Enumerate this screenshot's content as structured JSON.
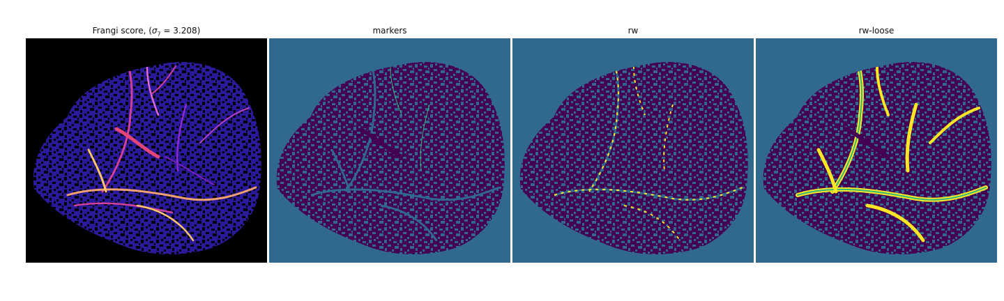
{
  "figure": {
    "panels": [
      {
        "id": "frangi",
        "title_prefix": "Frangi score, (",
        "title_sigma": "σ",
        "title_sub": "7",
        "title_suffix": " = 3.208)",
        "colormap": "magma/plasma"
      },
      {
        "id": "markers",
        "title": "markers",
        "colormap": "viridis"
      },
      {
        "id": "rw",
        "title": "rw",
        "colormap": "viridis"
      },
      {
        "id": "rw-loose",
        "title": "rw-loose",
        "colormap": "viridis"
      }
    ],
    "colors": {
      "frangi_bg": "#000000",
      "frangi_mesh": "#2a1a9a",
      "frangi_vessel_hi": "#f9c46b",
      "frangi_vessel_mid": "#d0409a",
      "seg_bg": "#31688e",
      "seg_tissue": "#440154",
      "seg_channel": "#31688e",
      "seg_marker": "#35b779",
      "seg_vessel": "#fde725"
    }
  }
}
